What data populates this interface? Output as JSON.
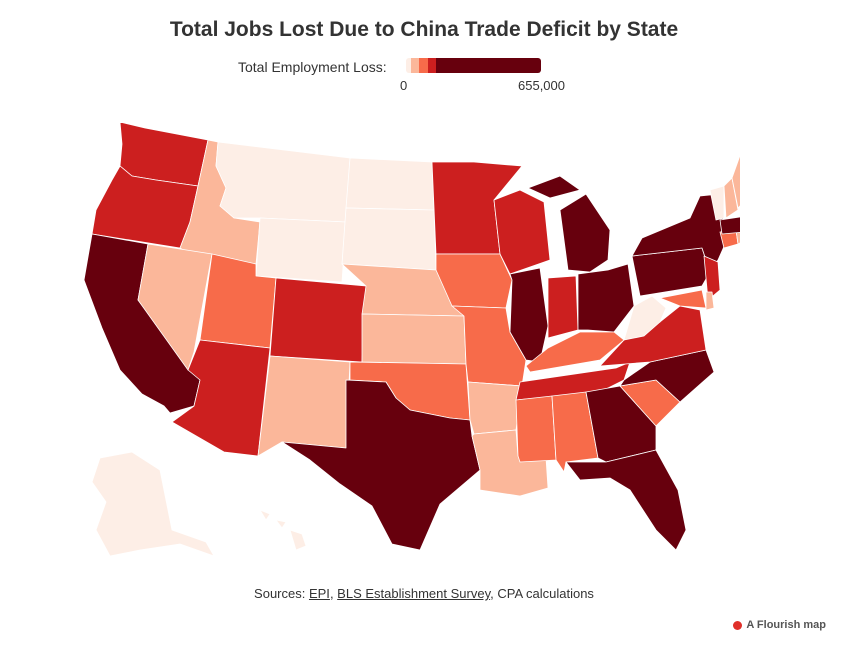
{
  "title": "Total Jobs Lost Due to China Trade Deficit by State",
  "legend": {
    "label": "Total Employment Loss:",
    "min_label": "0",
    "max_label": "655,000",
    "colors": [
      "#fdeee6",
      "#fbb79a",
      "#f76b4a",
      "#cc1f1f",
      "#67000d"
    ],
    "min_value": 0,
    "max_value": 655000
  },
  "palette": {
    "tier1": "#fdeee6",
    "tier2": "#fbb79a",
    "tier3": "#f76b4a",
    "tier4": "#cc1f1f",
    "tier5": "#67000d"
  },
  "states": [
    {
      "abbr": "WA",
      "tier": 4
    },
    {
      "abbr": "OR",
      "tier": 4
    },
    {
      "abbr": "CA",
      "tier": 5
    },
    {
      "abbr": "ID",
      "tier": 2
    },
    {
      "abbr": "NV",
      "tier": 2
    },
    {
      "abbr": "MT",
      "tier": 1
    },
    {
      "abbr": "WY",
      "tier": 1
    },
    {
      "abbr": "UT",
      "tier": 3
    },
    {
      "abbr": "AZ",
      "tier": 4
    },
    {
      "abbr": "CO",
      "tier": 4
    },
    {
      "abbr": "NM",
      "tier": 2
    },
    {
      "abbr": "ND",
      "tier": 1
    },
    {
      "abbr": "SD",
      "tier": 1
    },
    {
      "abbr": "NE",
      "tier": 2
    },
    {
      "abbr": "KS",
      "tier": 2
    },
    {
      "abbr": "OK",
      "tier": 3
    },
    {
      "abbr": "TX",
      "tier": 5
    },
    {
      "abbr": "MN",
      "tier": 4
    },
    {
      "abbr": "IA",
      "tier": 3
    },
    {
      "abbr": "MO",
      "tier": 3
    },
    {
      "abbr": "AR",
      "tier": 2
    },
    {
      "abbr": "LA",
      "tier": 2
    },
    {
      "abbr": "WI",
      "tier": 4
    },
    {
      "abbr": "IL",
      "tier": 5
    },
    {
      "abbr": "MI",
      "tier": 5
    },
    {
      "abbr": "IN",
      "tier": 4
    },
    {
      "abbr": "OH",
      "tier": 5
    },
    {
      "abbr": "KY",
      "tier": 3
    },
    {
      "abbr": "TN",
      "tier": 4
    },
    {
      "abbr": "MS",
      "tier": 3
    },
    {
      "abbr": "AL",
      "tier": 3
    },
    {
      "abbr": "GA",
      "tier": 5
    },
    {
      "abbr": "FL",
      "tier": 5
    },
    {
      "abbr": "SC",
      "tier": 3
    },
    {
      "abbr": "NC",
      "tier": 5
    },
    {
      "abbr": "VA",
      "tier": 4
    },
    {
      "abbr": "WV",
      "tier": 1
    },
    {
      "abbr": "PA",
      "tier": 5
    },
    {
      "abbr": "NY",
      "tier": 5
    },
    {
      "abbr": "NJ",
      "tier": 4
    },
    {
      "abbr": "MD",
      "tier": 3
    },
    {
      "abbr": "DE",
      "tier": 2
    },
    {
      "abbr": "CT",
      "tier": 3
    },
    {
      "abbr": "RI",
      "tier": 2
    },
    {
      "abbr": "MA",
      "tier": 5
    },
    {
      "abbr": "VT",
      "tier": 1
    },
    {
      "abbr": "NH",
      "tier": 2
    },
    {
      "abbr": "ME",
      "tier": 2
    },
    {
      "abbr": "AK",
      "tier": 1
    },
    {
      "abbr": "HI",
      "tier": 1
    }
  ],
  "sources": {
    "prefix": "Sources: ",
    "link1": "EPI",
    "sep": ", ",
    "link2": "BLS Establishment Survey",
    "suffix": ", CPA calculations"
  },
  "credit": "A Flourish map",
  "credit_icon": "flourish-logo-icon"
}
